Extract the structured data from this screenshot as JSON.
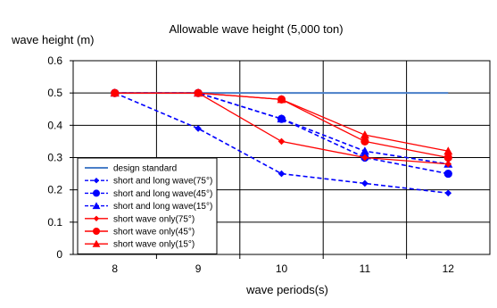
{
  "chart_data": {
    "type": "line",
    "title": "Allowable wave height (5,000 ton)",
    "ylabel": "wave height (m)",
    "xlabel": "wave periods(s)",
    "categories": [
      "8",
      "9",
      "10",
      "11",
      "12"
    ],
    "y_ticks": [
      "0",
      "0.1",
      "0.2",
      "0.3",
      "0.4",
      "0.5",
      "0.6"
    ],
    "ylim": [
      0,
      0.6
    ],
    "grid": true,
    "legend_position": "bottom-left inside plot",
    "series": [
      {
        "name": "design standard",
        "values": [
          0.5,
          0.5,
          0.5,
          0.5,
          0.5
        ],
        "color": "#4a7fc8",
        "dash": "solid",
        "marker": "none"
      },
      {
        "name": "short and long wave(75°)",
        "values": [
          0.5,
          0.39,
          0.25,
          0.22,
          0.19
        ],
        "color": "#0000ff",
        "dash": "dashed",
        "marker": "diamond"
      },
      {
        "name": "short and long wave(45°)",
        "values": [
          0.5,
          0.5,
          0.42,
          0.3,
          0.25
        ],
        "color": "#0000ff",
        "dash": "dashed",
        "marker": "circle"
      },
      {
        "name": "short and long wave(15°)",
        "values": [
          0.5,
          0.5,
          0.42,
          0.32,
          0.28
        ],
        "color": "#0000ff",
        "dash": "dashed",
        "marker": "triangle"
      },
      {
        "name": "short wave only(75°)",
        "values": [
          0.5,
          0.5,
          0.35,
          0.3,
          0.28
        ],
        "color": "#ff0000",
        "dash": "solid",
        "marker": "diamond"
      },
      {
        "name": "short wave only(45°)",
        "values": [
          0.5,
          0.5,
          0.48,
          0.35,
          0.3
        ],
        "color": "#ff0000",
        "dash": "solid",
        "marker": "circle"
      },
      {
        "name": "short wave only(15°)",
        "values": [
          0.5,
          0.5,
          0.48,
          0.37,
          0.32
        ],
        "color": "#ff0000",
        "dash": "solid",
        "marker": "triangle"
      }
    ]
  }
}
